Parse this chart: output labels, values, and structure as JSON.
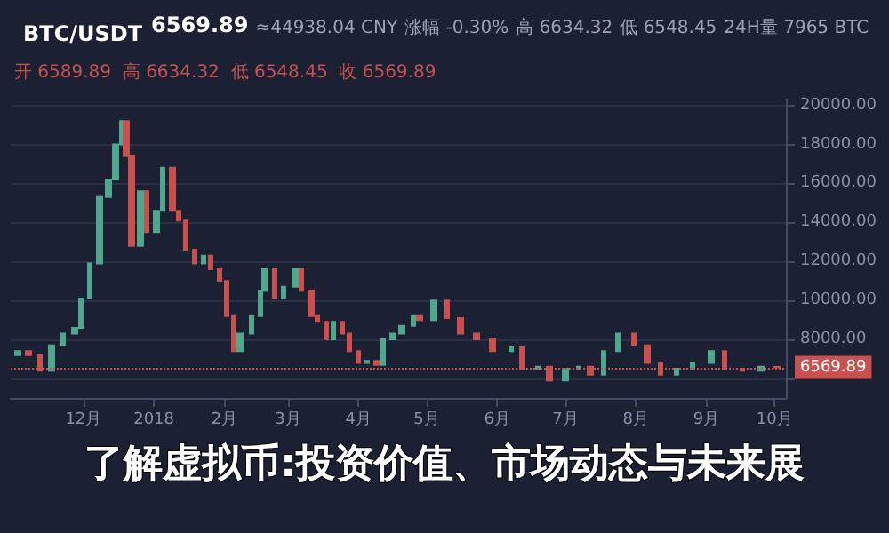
{
  "chart_data": {
    "type": "candlestick",
    "title": "BTC/USDT",
    "annotations": [
      "6569.89",
      "≈44938.04 CNY",
      "涨幅 -0.30%",
      "高 6634.32",
      "低 6548.45",
      "24H量 7965 BTC",
      "开 6589.89  高 6634.32  低 6548.45  收 6569.89",
      "了解虚拟币:投资价值、市场动态与未来展"
    ],
    "x": [
      "2017-11-02",
      "2017-11-07",
      "2017-11-12",
      "2017-11-17",
      "2017-11-22",
      "2017-11-27",
      "2017-11-30",
      "2017-12-04",
      "2017-12-08",
      "2017-12-12",
      "2017-12-15",
      "2017-12-18",
      "2017-12-20",
      "2017-12-22",
      "2017-12-26",
      "2017-12-29",
      "2018-01-02",
      "2018-01-05",
      "2018-01-09",
      "2018-01-12",
      "2018-01-15",
      "2018-01-19",
      "2018-01-23",
      "2018-01-26",
      "2018-01-30",
      "2018-02-02",
      "2018-02-05",
      "2018-02-08",
      "2018-02-13",
      "2018-02-17",
      "2018-02-19",
      "2018-02-23",
      "2018-02-27",
      "2018-03-04",
      "2018-03-07",
      "2018-03-11",
      "2018-03-14",
      "2018-03-18",
      "2018-03-21",
      "2018-03-25",
      "2018-03-28",
      "2018-04-01",
      "2018-04-05",
      "2018-04-09",
      "2018-04-12",
      "2018-04-16",
      "2018-04-20",
      "2018-04-25",
      "2018-04-28",
      "2018-05-04",
      "2018-05-10",
      "2018-05-16",
      "2018-05-23",
      "2018-05-30",
      "2018-06-07",
      "2018-06-12",
      "2018-06-19",
      "2018-06-24",
      "2018-07-01",
      "2018-07-07",
      "2018-07-12",
      "2018-07-18",
      "2018-07-24",
      "2018-07-31",
      "2018-08-06",
      "2018-08-12",
      "2018-08-19",
      "2018-08-26",
      "2018-09-03",
      "2018-09-09",
      "2018-09-17",
      "2018-09-25",
      "2018-10-02"
    ],
    "ohlc": [
      [
        7200,
        7400,
        7200,
        7400
      ],
      [
        7400,
        7400,
        7200,
        7200
      ],
      [
        7200,
        7200,
        6400,
        6400
      ],
      [
        6400,
        7700,
        6400,
        7700
      ],
      [
        7700,
        8300,
        7700,
        8300
      ],
      [
        8300,
        8600,
        8300,
        8600
      ],
      [
        8600,
        10100,
        8600,
        10100
      ],
      [
        10100,
        11900,
        10100,
        11900
      ],
      [
        11900,
        15300,
        11900,
        15300
      ],
      [
        15300,
        16200,
        15300,
        16200
      ],
      [
        16200,
        18000,
        16200,
        18000
      ],
      [
        18000,
        19200,
        18000,
        19200
      ],
      [
        19200,
        19200,
        17400,
        17400
      ],
      [
        17400,
        17400,
        12800,
        12800
      ],
      [
        12800,
        15600,
        12800,
        15600
      ],
      [
        15600,
        15600,
        13500,
        13500
      ],
      [
        13500,
        14600,
        13500,
        14600
      ],
      [
        14600,
        16800,
        14600,
        16800
      ],
      [
        16800,
        16800,
        14600,
        14600
      ],
      [
        14600,
        14600,
        14100,
        14100
      ],
      [
        14100,
        14100,
        12600,
        12600
      ],
      [
        12600,
        12600,
        11900,
        11900
      ],
      [
        11900,
        12300,
        11900,
        12300
      ],
      [
        12300,
        12300,
        11600,
        11600
      ],
      [
        11600,
        11600,
        11000,
        11000
      ],
      [
        11000,
        11000,
        9200,
        9200
      ],
      [
        9200,
        9200,
        7400,
        7400
      ],
      [
        7400,
        8300,
        7400,
        8300
      ],
      [
        8300,
        9200,
        8300,
        9200
      ],
      [
        9200,
        10500,
        9200,
        10500
      ],
      [
        10500,
        11600,
        10500,
        11600
      ],
      [
        11600,
        11600,
        10100,
        10100
      ],
      [
        10100,
        10700,
        10100,
        10700
      ],
      [
        10700,
        11600,
        10700,
        11600
      ],
      [
        11600,
        11600,
        10500,
        10500
      ],
      [
        10500,
        10500,
        9200,
        9200
      ],
      [
        9200,
        9200,
        8900,
        8900
      ],
      [
        8900,
        8900,
        8000,
        8000
      ],
      [
        8000,
        8900,
        8000,
        8900
      ],
      [
        8900,
        8900,
        8300,
        8300
      ],
      [
        8300,
        8300,
        7400,
        7400
      ],
      [
        7400,
        7400,
        6800,
        6800
      ],
      [
        6800,
        6900,
        6800,
        6900
      ],
      [
        6900,
        6900,
        6700,
        6700
      ],
      [
        6700,
        8000,
        6700,
        8000
      ],
      [
        8000,
        8300,
        8000,
        8300
      ],
      [
        8300,
        8700,
        8300,
        8700
      ],
      [
        8700,
        9200,
        8700,
        9200
      ],
      [
        9200,
        9200,
        9000,
        9000
      ],
      [
        9000,
        10000,
        9000,
        10000
      ],
      [
        10000,
        10000,
        9100,
        9100
      ],
      [
        9100,
        9100,
        8300,
        8300
      ],
      [
        8300,
        8300,
        8000,
        8000
      ],
      [
        8000,
        8000,
        7400,
        7400
      ],
      [
        7400,
        7600,
        7400,
        7600
      ],
      [
        7600,
        7600,
        6500,
        6500
      ],
      [
        6500,
        6600,
        6500,
        6600
      ],
      [
        6600,
        6600,
        5900,
        5900
      ],
      [
        5900,
        6500,
        5900,
        6500
      ],
      [
        6500,
        6600,
        6500,
        6600
      ],
      [
        6600,
        6600,
        6200,
        6200
      ],
      [
        6200,
        7400,
        6200,
        7400
      ],
      [
        7400,
        8300,
        7400,
        8300
      ],
      [
        8300,
        8300,
        7700,
        7700
      ],
      [
        7700,
        7700,
        6800,
        6800
      ],
      [
        6800,
        6800,
        6200,
        6200
      ],
      [
        6200,
        6500,
        6200,
        6500
      ],
      [
        6500,
        6800,
        6500,
        6800
      ],
      [
        6800,
        7400,
        6800,
        7400
      ],
      [
        7400,
        7400,
        6500,
        6500
      ],
      [
        6500,
        6500,
        6400,
        6400
      ],
      [
        6400,
        6600,
        6400,
        6600
      ],
      [
        6600,
        6600,
        6569.89,
        6569.89
      ]
    ],
    "xlim": [
      "2017-10-30",
      "2018-10-06"
    ],
    "xticks": [
      {
        "value": "2017-12-01",
        "label": "12月"
      },
      {
        "value": "2018-01-01",
        "label": "2018"
      },
      {
        "value": "2018-02-01",
        "label": "2月"
      },
      {
        "value": "2018-03-01",
        "label": "3月"
      },
      {
        "value": "2018-04-01",
        "label": "4月"
      },
      {
        "value": "2018-05-01",
        "label": "5月"
      },
      {
        "value": "2018-06-01",
        "label": "6月"
      },
      {
        "value": "2018-07-01",
        "label": "7月"
      },
      {
        "value": "2018-08-01",
        "label": "8月"
      },
      {
        "value": "2018-09-01",
        "label": "9月"
      },
      {
        "value": "2018-10-01",
        "label": "10月"
      }
    ],
    "ylim": [
      5000,
      20300
    ],
    "yticks": [
      {
        "value": 6000,
        "label": null
      },
      {
        "value": 8000,
        "label": "8000.00"
      },
      {
        "value": 10000,
        "label": "10000.00"
      },
      {
        "value": 12000,
        "label": "12000.00"
      },
      {
        "value": 14000,
        "label": "14000.00"
      },
      {
        "value": 16000,
        "label": "16000.00"
      },
      {
        "value": 18000,
        "label": "18000.00"
      },
      {
        "value": 20000,
        "label": "20000.00"
      }
    ],
    "ref_lines": [
      {
        "axis": "y",
        "value": 6569.89,
        "label": "6569.89",
        "color": "#c8504f",
        "line_style": "dotted"
      }
    ],
    "grid": "y"
  }
}
